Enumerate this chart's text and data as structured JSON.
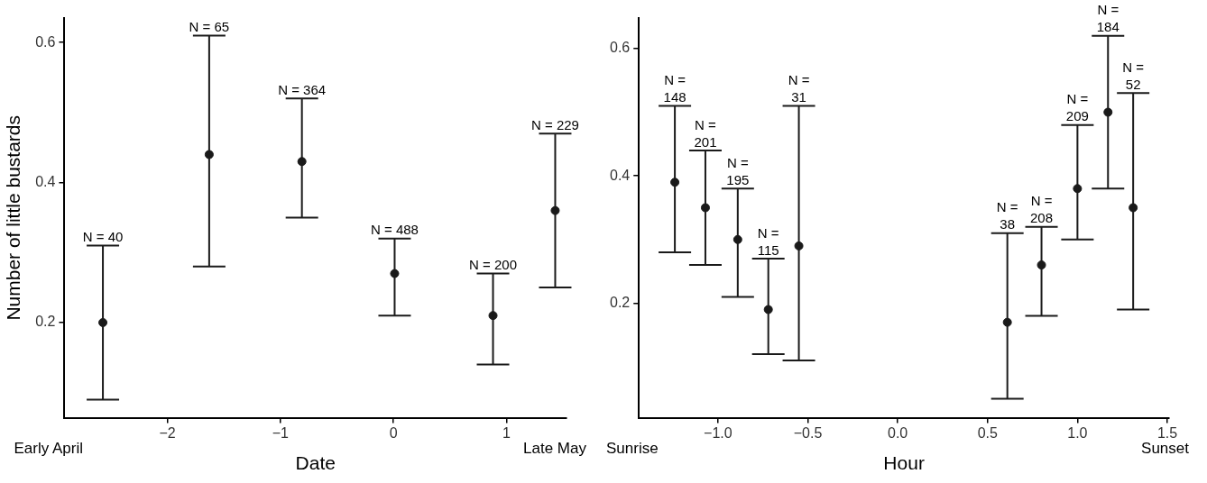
{
  "chart_data": [
    {
      "type": "scatter",
      "xlabel": "Date",
      "ylabel": "Number of little bustards",
      "marker": "circle",
      "grid": false,
      "legend": false,
      "xlim": [
        -2.91,
        1.53
      ],
      "ylim": [
        0.064,
        0.635
      ],
      "xticks": [
        {
          "value": -2,
          "label": "−2"
        },
        {
          "value": -1,
          "label": "−1"
        },
        0,
        1
      ],
      "yticks": [
        0.2,
        0.4,
        0.6
      ],
      "annotations": [
        "Early April",
        "Late May",
        {
          "text": "N = 40",
          "x": -2.57,
          "y": 0.31
        },
        {
          "text": "N = 65",
          "x": -1.63,
          "y": 0.61
        },
        {
          "text": "N = 364",
          "x": -0.81,
          "y": 0.52
        },
        {
          "text": "N = 488",
          "x": 0.01,
          "y": 0.32
        },
        {
          "text": "N = 200",
          "x": 0.88,
          "y": 0.27
        },
        {
          "text": "N = 229",
          "x": 1.43,
          "y": 0.47
        }
      ],
      "series": [
        {
          "color": "#1a1a1a",
          "x": [
            -2.57,
            -1.63,
            -0.81,
            0.01,
            0.88,
            1.43
          ],
          "values": [
            0.2,
            0.44,
            0.43,
            0.27,
            0.21,
            0.36
          ],
          "errors": [
            [
              0.09,
              0.31
            ],
            [
              0.28,
              0.61
            ],
            [
              0.35,
              0.52
            ],
            [
              0.21,
              0.32
            ],
            [
              0.14,
              0.27
            ],
            [
              0.25,
              0.47
            ]
          ]
        }
      ]
    },
    {
      "type": "scatter",
      "xlabel": "Hour",
      "marker": "circle",
      "grid": false,
      "legend": false,
      "xlim": [
        -1.44,
        1.51
      ],
      "ylim": [
        0.02,
        0.648
      ],
      "xticks": [
        {
          "value": -1,
          "label": "−1.0"
        },
        {
          "value": -0.5,
          "label": "−0.5"
        },
        {
          "value": 0,
          "label": "0.0"
        },
        {
          "value": 0.5,
          "label": "0.5"
        },
        {
          "value": 1,
          "label": "1.0"
        },
        {
          "value": 1.5,
          "label": "1.5"
        }
      ],
      "yticks": [
        0.2,
        0.4,
        0.6
      ],
      "annotations": [
        "Sunrise",
        "Sunset",
        {
          "text": "N = 148",
          "x": -1.24,
          "y": 0.51
        },
        {
          "text": "N = 201",
          "x": -1.07,
          "y": 0.44
        },
        {
          "text": "N = 195",
          "x": -0.89,
          "y": 0.38
        },
        {
          "text": "N = 115",
          "x": -0.72,
          "y": 0.27
        },
        {
          "text": "N = 31",
          "x": -0.55,
          "y": 0.51
        },
        {
          "text": "N = 38",
          "x": 0.61,
          "y": 0.31
        },
        {
          "text": "N = 208",
          "x": 0.8,
          "y": 0.32
        },
        {
          "text": "N = 209",
          "x": 1.0,
          "y": 0.48
        },
        {
          "text": "N = 184",
          "x": 1.17,
          "y": 0.62
        },
        {
          "text": "N = 52",
          "x": 1.31,
          "y": 0.53
        }
      ],
      "series": [
        {
          "color": "#1a1a1a",
          "x": [
            -1.24,
            -1.07,
            -0.89,
            -0.72,
            -0.55,
            0.61,
            0.8,
            1.0,
            1.17,
            1.31
          ],
          "values": [
            0.39,
            0.35,
            0.3,
            0.19,
            0.29,
            0.17,
            0.26,
            0.38,
            0.5,
            0.35
          ],
          "errors": [
            [
              0.28,
              0.51
            ],
            [
              0.26,
              0.44
            ],
            [
              0.21,
              0.38
            ],
            [
              0.12,
              0.27
            ],
            [
              0.11,
              0.51
            ],
            [
              0.05,
              0.31
            ],
            [
              0.18,
              0.32
            ],
            [
              0.3,
              0.48
            ],
            [
              0.38,
              0.62
            ],
            [
              0.19,
              0.53
            ]
          ]
        }
      ]
    }
  ]
}
